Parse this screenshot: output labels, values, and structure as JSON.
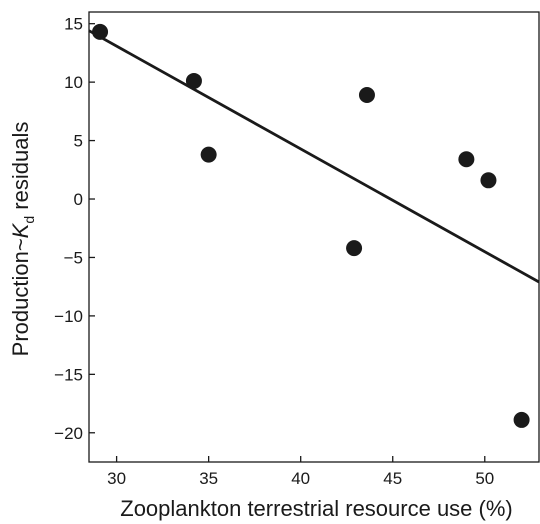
{
  "chart_data": {
    "type": "scatter",
    "xlabel": "Zooplankton terrestrial resource use (%)",
    "ylabel": {
      "prefix": "Production~",
      "italic": "K",
      "subscript": "d",
      "suffix": " residuals"
    },
    "xlim": [
      28.5,
      53
    ],
    "ylim": [
      -22.5,
      16
    ],
    "xticks": [
      30,
      35,
      40,
      45,
      50
    ],
    "xtick_labels": [
      "30",
      "35",
      "40",
      "45",
      "50"
    ],
    "yticks": [
      15,
      10,
      5,
      0,
      -5,
      -10,
      -15,
      -20
    ],
    "ytick_labels": [
      "15",
      "10",
      "5",
      "0",
      "−5",
      "−10",
      "−15",
      "−20"
    ],
    "grid": false,
    "series": [
      {
        "points": [
          {
            "x": 29.1,
            "y": 14.3
          },
          {
            "x": 34.2,
            "y": 10.1
          },
          {
            "x": 35.0,
            "y": 3.8
          },
          {
            "x": 42.9,
            "y": -4.2
          },
          {
            "x": 43.6,
            "y": 8.9
          },
          {
            "x": 49.0,
            "y": 3.4
          },
          {
            "x": 50.2,
            "y": 1.6
          },
          {
            "x": 52.0,
            "y": -18.9
          }
        ],
        "color": "#1a1a1a"
      }
    ],
    "fit_line": {
      "points": [
        {
          "x": 28.5,
          "y": 14.4
        },
        {
          "x": 53.0,
          "y": -7.1
        }
      ],
      "color": "#1a1a1a"
    }
  }
}
